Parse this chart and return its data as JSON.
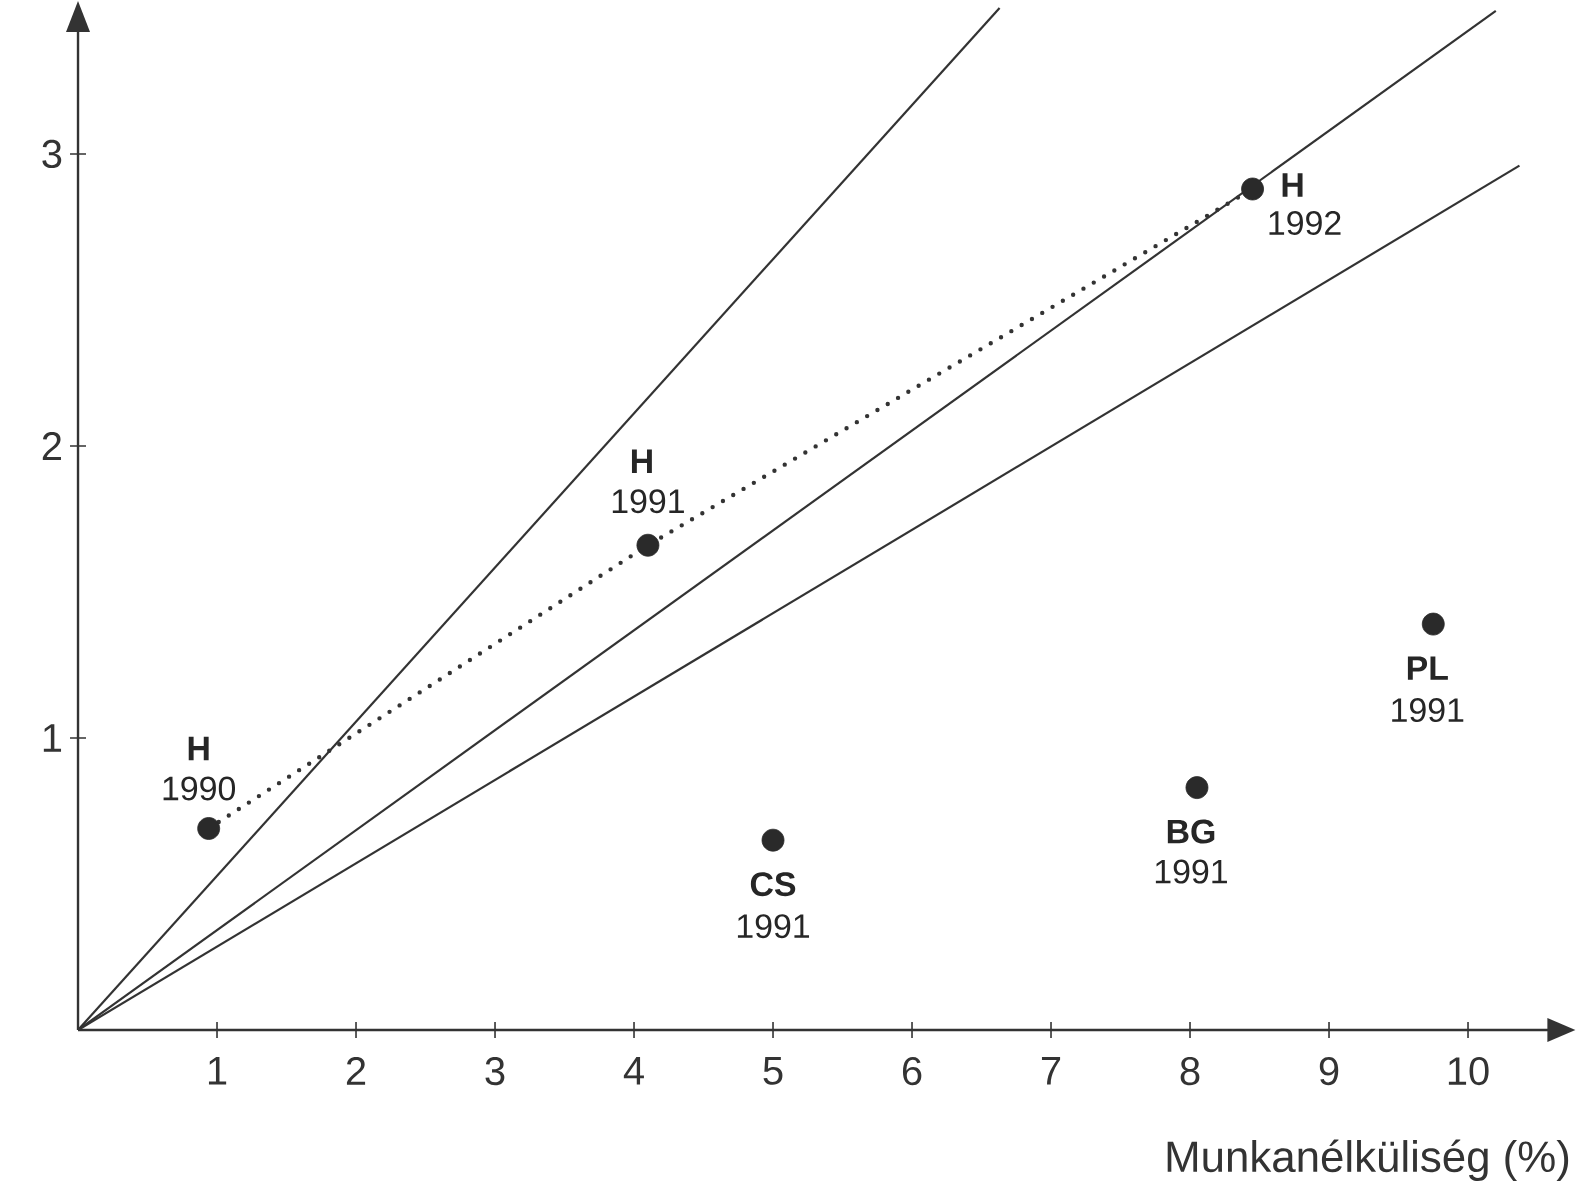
{
  "chart_data": {
    "type": "scatter",
    "xlabel": "Munkanélküliség (%)",
    "xlim": [
      0,
      10.6
    ],
    "ylim": [
      0,
      3.5
    ],
    "xticks": [
      1,
      2,
      3,
      4,
      5,
      6,
      7,
      8,
      9,
      10
    ],
    "yticks": [
      1,
      2,
      3
    ],
    "grid": false,
    "series": [
      {
        "type": "line",
        "color": "#333333",
        "x": [
          0,
          6.63
        ],
        "values": [
          0,
          3.5
        ],
        "marker": "none",
        "line_style": "solid"
      },
      {
        "type": "line",
        "color": "#333333",
        "x": [
          0,
          10.2
        ],
        "values": [
          0,
          3.49
        ],
        "marker": "none",
        "line_style": "solid"
      },
      {
        "type": "line",
        "color": "#333333",
        "x": [
          0,
          10.37
        ],
        "values": [
          0,
          2.96
        ],
        "marker": "none",
        "line_style": "solid"
      },
      {
        "type": "line",
        "color": "#333333",
        "x": [
          0.94,
          4.1,
          8.45
        ],
        "values": [
          0.69,
          1.66,
          2.88
        ],
        "marker": "none",
        "line_style": "dotted"
      },
      {
        "type": "scatter",
        "color": "#2a2a2a",
        "x": [
          0.94,
          4.1,
          8.45,
          5.0,
          8.05,
          9.75
        ],
        "values": [
          0.69,
          1.66,
          2.88,
          0.65,
          0.83,
          1.39
        ],
        "marker": "circle"
      }
    ],
    "annotations": [
      {
        "text": "H",
        "x": 0.94,
        "y": 0.69
      },
      {
        "text": "1990",
        "x": 0.94,
        "y": 0.69
      },
      {
        "text": "H",
        "x": 4.1,
        "y": 1.66
      },
      {
        "text": "1991",
        "x": 4.1,
        "y": 1.66
      },
      {
        "text": "H",
        "x": 8.45,
        "y": 2.88
      },
      {
        "text": "1992",
        "x": 8.45,
        "y": 2.88
      },
      {
        "text": "CS",
        "x": 5.0,
        "y": 0.65
      },
      {
        "text": "1991",
        "x": 5.0,
        "y": 0.65
      },
      {
        "text": "BG",
        "x": 8.05,
        "y": 0.83
      },
      {
        "text": "1991",
        "x": 8.05,
        "y": 0.83
      },
      {
        "text": "PL",
        "x": 9.75,
        "y": 1.39
      },
      {
        "text": "1991",
        "x": 9.75,
        "y": 1.39
      }
    ]
  }
}
